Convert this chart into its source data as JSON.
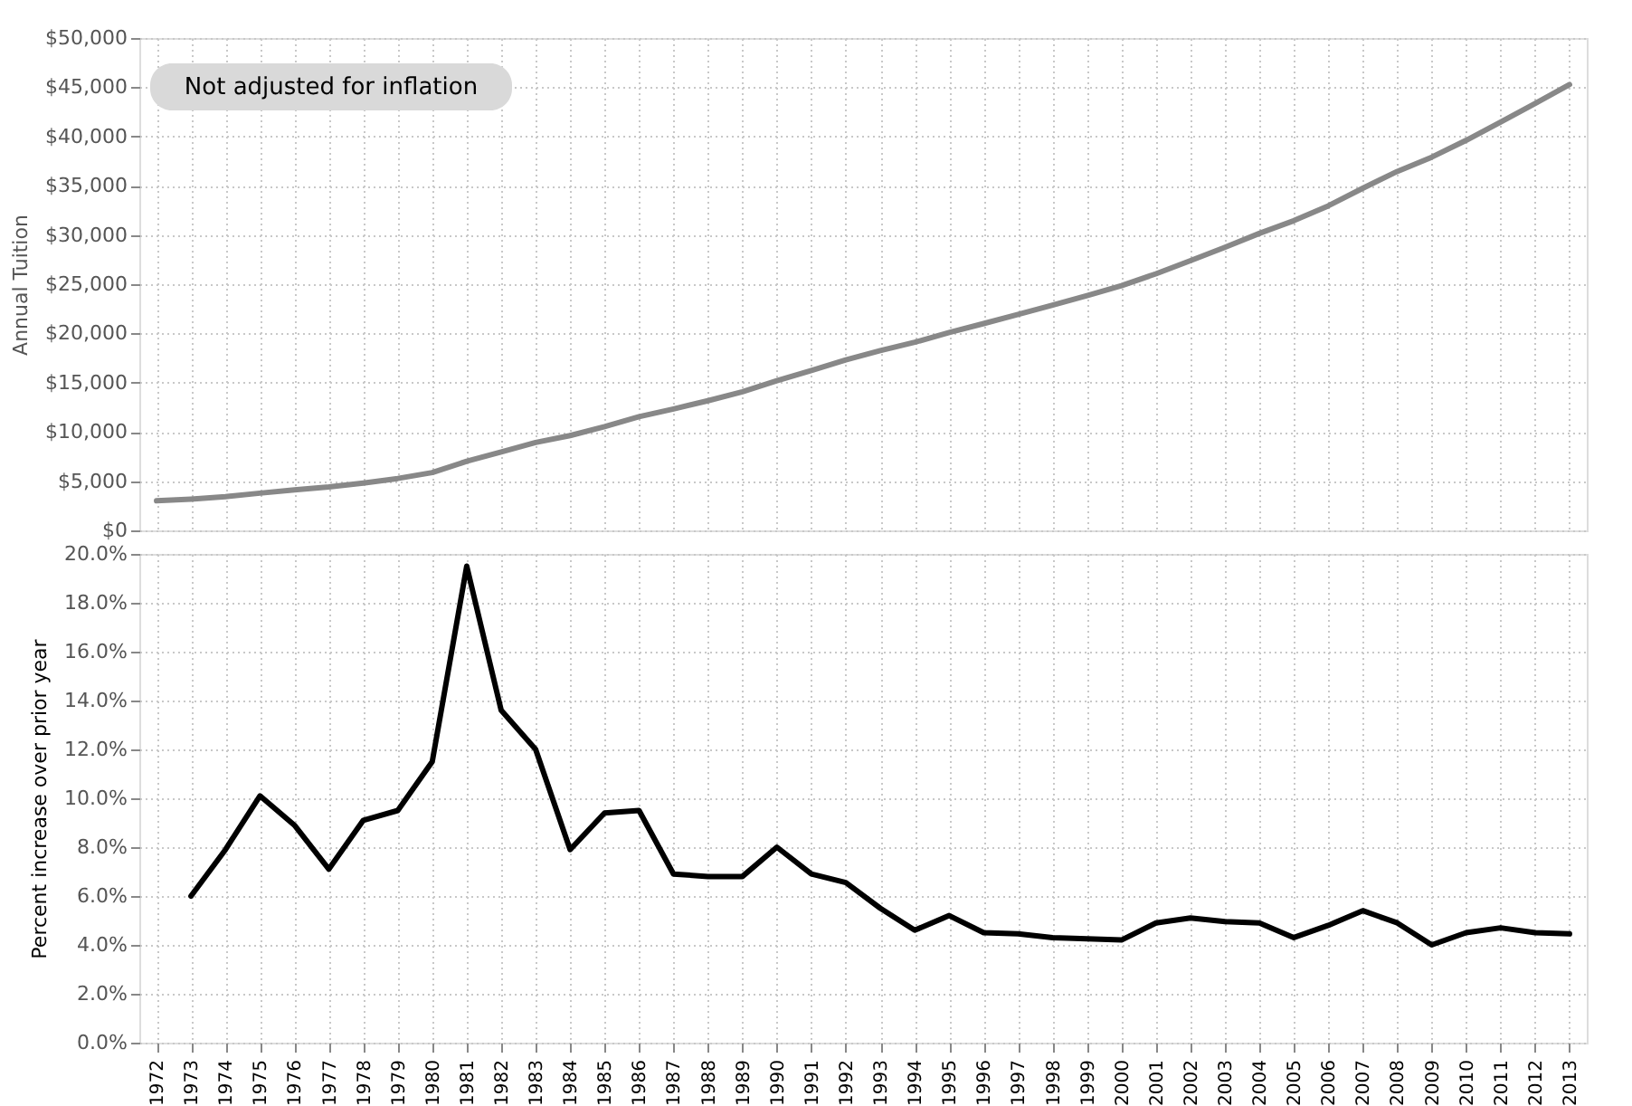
{
  "chart_data": [
    {
      "type": "line",
      "ylabel": "Annual Tuition",
      "annotations": [
        "Not adjusted for inflation"
      ],
      "categories": [
        "1972",
        "1973",
        "1974",
        "1975",
        "1976",
        "1977",
        "1978",
        "1979",
        "1980",
        "1981",
        "1982",
        "1983",
        "1984",
        "1985",
        "1986",
        "1987",
        "1988",
        "1989",
        "1990",
        "1991",
        "1992",
        "1993",
        "1994",
        "1995",
        "1996",
        "1997",
        "1998",
        "1999",
        "2000",
        "2001",
        "2002",
        "2003",
        "2004",
        "2005",
        "2006",
        "2007",
        "2008",
        "2009",
        "2010",
        "2011",
        "2012",
        "2013"
      ],
      "series": [
        {
          "color": "#888888",
          "values": [
            3000,
            3180,
            3430,
            3780,
            4120,
            4410,
            4810,
            5270,
            5870,
            7020,
            7970,
            8930,
            9630,
            10540,
            11540,
            12330,
            13170,
            14070,
            15190,
            16240,
            17310,
            18260,
            19100,
            20090,
            21000,
            21930,
            22870,
            23840,
            24850,
            26060,
            27390,
            28750,
            30160,
            31450,
            32960,
            34740,
            36450,
            37900,
            39610,
            41470,
            43340,
            45270
          ]
        }
      ],
      "ylim": [
        0,
        50000
      ],
      "yticks": [
        {
          "value": 0,
          "label": "$0"
        },
        {
          "value": 5000,
          "label": "$5,000"
        },
        {
          "value": 10000,
          "label": "$10,000"
        },
        {
          "value": 15000,
          "label": "$15,000"
        },
        {
          "value": 20000,
          "label": "$20,000"
        },
        {
          "value": 25000,
          "label": "$25,000"
        },
        {
          "value": 30000,
          "label": "$30,000"
        },
        {
          "value": 35000,
          "label": "$35,000"
        },
        {
          "value": 40000,
          "label": "$40,000"
        },
        {
          "value": 45000,
          "label": "$45,000"
        },
        {
          "value": 50000,
          "label": "$50,000"
        }
      ],
      "grid": true,
      "tick_labels": "y",
      "line_style": "solid",
      "marker": "none"
    },
    {
      "type": "line",
      "ylabel": "Percent increase over prior year",
      "categories": [
        "1972",
        "1973",
        "1974",
        "1975",
        "1976",
        "1977",
        "1978",
        "1979",
        "1980",
        "1981",
        "1982",
        "1983",
        "1984",
        "1985",
        "1986",
        "1987",
        "1988",
        "1989",
        "1990",
        "1991",
        "1992",
        "1993",
        "1994",
        "1995",
        "1996",
        "1997",
        "1998",
        "1999",
        "2000",
        "2001",
        "2002",
        "2003",
        "2004",
        "2005",
        "2006",
        "2007",
        "2008",
        "2009",
        "2010",
        "2011",
        "2012",
        "2013"
      ],
      "series": [
        {
          "color": "#000000",
          "values": [
            null,
            6.0,
            7.9,
            10.1,
            8.9,
            7.1,
            9.1,
            9.5,
            11.5,
            19.5,
            13.6,
            12.0,
            7.9,
            9.4,
            9.5,
            6.9,
            6.8,
            6.8,
            8.0,
            6.9,
            6.55,
            5.5,
            4.6,
            5.2,
            4.5,
            4.45,
            4.3,
            4.25,
            4.2,
            4.9,
            5.1,
            4.95,
            4.9,
            4.3,
            4.8,
            5.4,
            4.9,
            4.0,
            4.5,
            4.7,
            4.5,
            4.45
          ]
        }
      ],
      "ylim": [
        0,
        20
      ],
      "yticks": [
        {
          "value": 0,
          "label": "0.0%"
        },
        {
          "value": 2,
          "label": "2.0%"
        },
        {
          "value": 4,
          "label": "4.0%"
        },
        {
          "value": 6,
          "label": "6.0%"
        },
        {
          "value": 8,
          "label": "8.0%"
        },
        {
          "value": 10,
          "label": "10.0%"
        },
        {
          "value": 12,
          "label": "12.0%"
        },
        {
          "value": 14,
          "label": "14.0%"
        },
        {
          "value": 16,
          "label": "16.0%"
        },
        {
          "value": 18,
          "label": "18.0%"
        },
        {
          "value": 20,
          "label": "20.0%"
        }
      ],
      "grid": true,
      "line_style": "solid",
      "marker": "none"
    }
  ]
}
